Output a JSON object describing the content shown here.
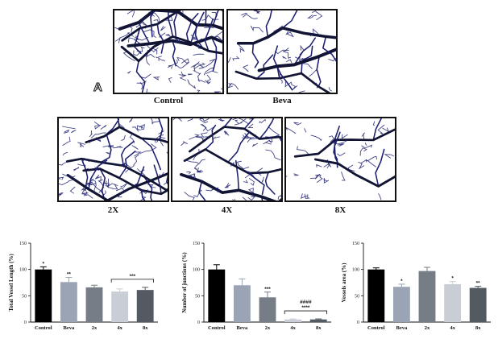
{
  "figure": {
    "panel_letter": "A",
    "panels": [
      {
        "caption": "Control"
      },
      {
        "caption": "Beva"
      },
      {
        "caption": "2X"
      },
      {
        "caption": "4X"
      },
      {
        "caption": "8X"
      }
    ]
  },
  "colors": {
    "vessel": "#1c1f6e",
    "bar_colors": [
      "#000000",
      "#9aa4b4",
      "#777d86",
      "#c9ced6",
      "#545a62"
    ]
  },
  "chart_data": [
    {
      "type": "bar",
      "categories": [
        "Control",
        "Beva",
        "2x",
        "4x",
        "8x"
      ],
      "values": [
        100,
        76,
        66,
        58,
        61
      ],
      "errors": [
        5,
        9,
        4,
        5,
        5
      ],
      "ylabel": "Total Vessel Length (%)",
      "ylim": [
        0,
        150
      ],
      "yticks": [
        "0",
        "50",
        "100",
        "150"
      ],
      "annotations": [
        "*",
        "**",
        "",
        "",
        ""
      ],
      "bracket": {
        "from": 3,
        "to": 4,
        "label": "***"
      }
    },
    {
      "type": "bar",
      "categories": [
        "Control",
        "Beva",
        "2x",
        "4x",
        "8x"
      ],
      "values": [
        100,
        70,
        47,
        5,
        5
      ],
      "errors": [
        9,
        12,
        10,
        1,
        1
      ],
      "ylabel": "Number of junctions (%)",
      "ylim": [
        0,
        150
      ],
      "yticks": [
        "0",
        "50",
        "100",
        "150"
      ],
      "annotations": [
        "",
        "",
        "***",
        "",
        ""
      ],
      "bracket": {
        "from": 3,
        "to": 4,
        "label": "****",
        "label2": "####"
      }
    },
    {
      "type": "bar",
      "categories": [
        "Control",
        "Beva",
        "2x",
        "4x",
        "8x"
      ],
      "values": [
        100,
        67,
        97,
        72,
        65
      ],
      "errors": [
        3,
        5,
        7,
        5,
        3
      ],
      "ylabel": "Vessels area (%)",
      "ylim": [
        0,
        150
      ],
      "yticks": [
        "0",
        "50",
        "100",
        "150"
      ],
      "annotations": [
        "",
        "*",
        "",
        "*",
        "**"
      ],
      "bracket": null
    }
  ]
}
